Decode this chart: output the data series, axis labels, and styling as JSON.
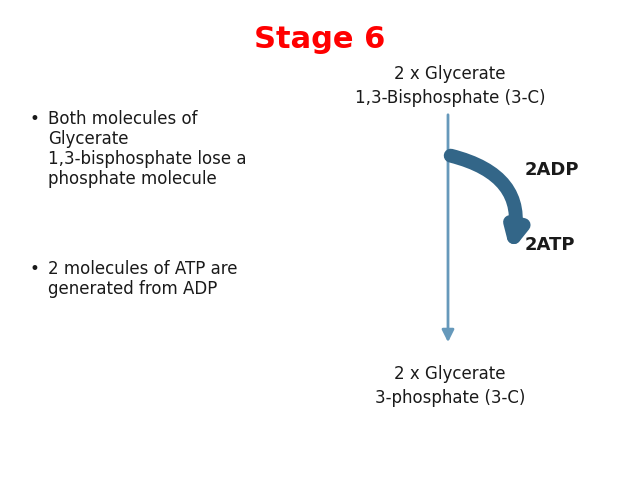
{
  "title": "Stage 6",
  "title_color": "#FF0000",
  "title_fontsize": 22,
  "title_fontweight": "bold",
  "background_color": "#FFFFFF",
  "bullet1_line1": "Both molecules of",
  "bullet1_line2": "Glycerate",
  "bullet1_line3": "1,3-bisphosphate lose a",
  "bullet1_line4": "phosphate molecule",
  "bullet2_line1": "2 molecules of ATP are",
  "bullet2_line2": "generated from ADP",
  "bullet_fontsize": 12,
  "bullet_color": "#1a1a1a",
  "top_label": "2 x Glycerate\n1,3-Bisphosphate (3-C)",
  "bottom_label": "2 x Glycerate\n3-phosphate (3-C)",
  "adp_label": "2ADP",
  "atp_label": "2ATP",
  "label_fontsize": 12,
  "label_fontweight": "bold",
  "arrow_light_color": "#6699bb",
  "arrow_dark_color": "#336688"
}
